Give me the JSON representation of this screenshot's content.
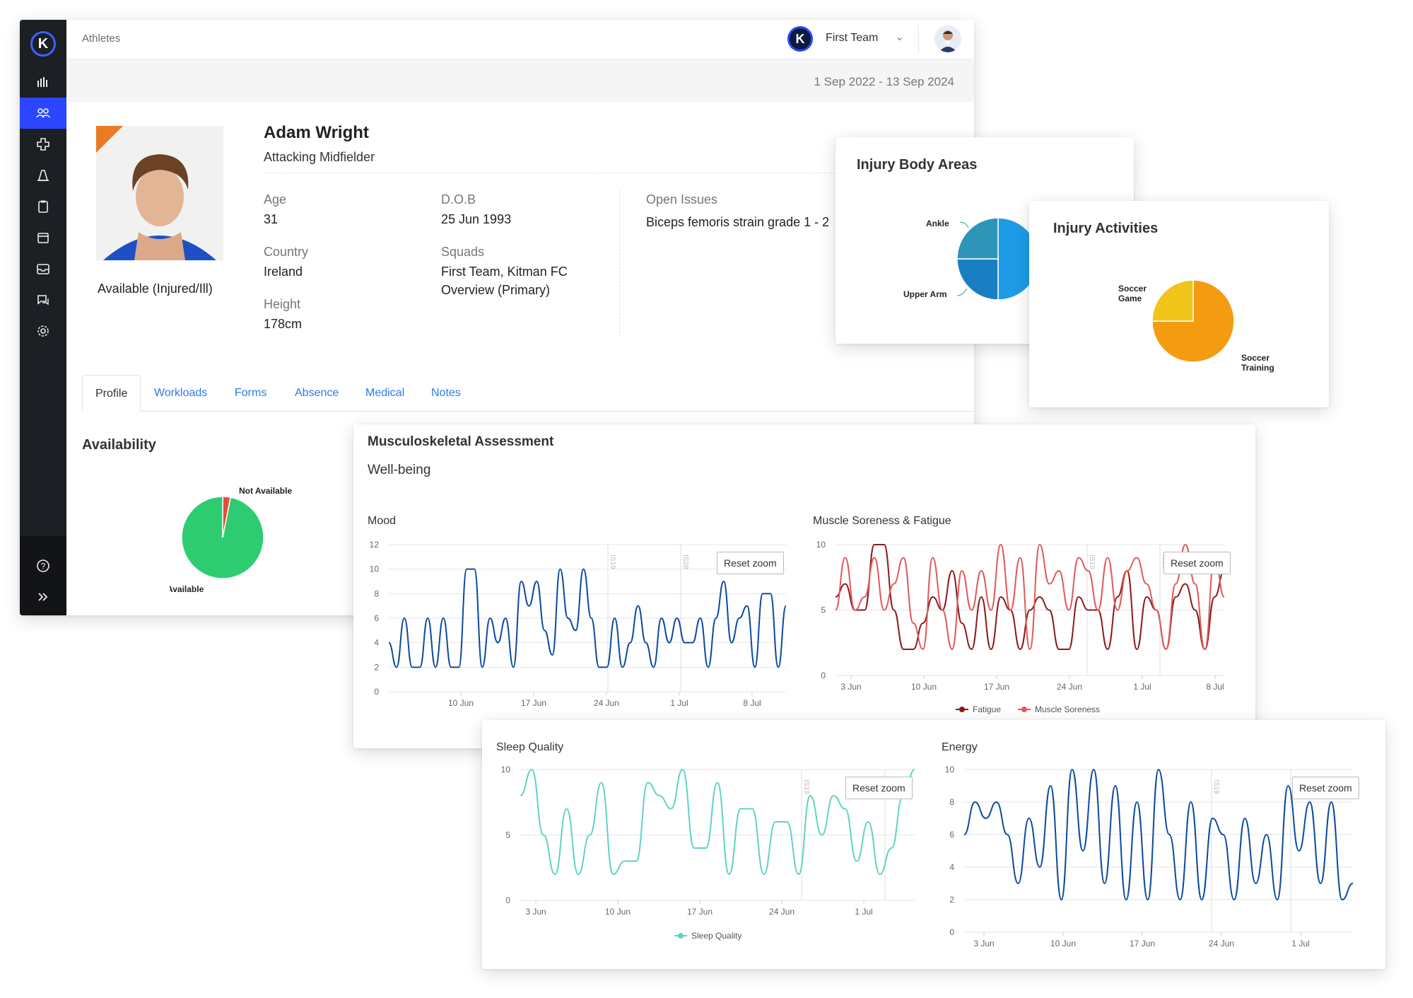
{
  "breadcrumb": "Athletes",
  "team": {
    "name": "First Team",
    "logo_letter": "K"
  },
  "date_range": "1 Sep 2022 - 13 Sep 2024",
  "sidebar": {
    "logo_letter": "K",
    "items": [
      {
        "icon": "bar-chart-icon"
      },
      {
        "icon": "athletes-icon",
        "active": true
      },
      {
        "icon": "medical-cross-icon"
      },
      {
        "icon": "cone-icon"
      },
      {
        "icon": "clipboard-icon"
      },
      {
        "icon": "calendar-icon"
      },
      {
        "icon": "inbox-icon"
      },
      {
        "icon": "chat-icon"
      },
      {
        "icon": "settings-icon"
      }
    ],
    "bottom_items": [
      {
        "icon": "help-icon"
      },
      {
        "icon": "expand-icon"
      }
    ]
  },
  "athlete": {
    "name": "Adam Wright",
    "position": "Attacking Midfielder",
    "status": "Available (Injured/Ill)",
    "status_flag_color": "#ea7b26",
    "fields": {
      "age_label": "Age",
      "age": "31",
      "dob_label": "D.O.B",
      "dob": "25 Jun 1993",
      "country_label": "Country",
      "country": "Ireland",
      "squads_label": "Squads",
      "squads_line1": "First Team, Kitman FC",
      "squads_line2": "Overview (Primary)",
      "height_label": "Height",
      "height": "178cm",
      "issues_label": "Open Issues",
      "issues": "Biceps femoris strain grade 1 - 2"
    }
  },
  "tabs": [
    "Profile",
    "Workloads",
    "Forms",
    "Absence",
    "Medical",
    "Notes"
  ],
  "availability": {
    "title": "Availability",
    "chart_data": {
      "type": "pie",
      "slices": [
        {
          "label": "Available",
          "value": 97,
          "color": "#2ecc71"
        },
        {
          "label": "Not Available",
          "value": 3,
          "color": "#e74c3c"
        }
      ]
    }
  },
  "injury_body_areas": {
    "title": "Injury Body Areas",
    "chart_data": {
      "type": "pie",
      "slices": [
        {
          "label": "Ankle",
          "value": 25,
          "color": "#2e95b8"
        },
        {
          "label": "Upper Arm",
          "value": 25,
          "color": "#1a7fc2"
        },
        {
          "label": "",
          "value": 50,
          "color": "#1e9be6"
        }
      ]
    }
  },
  "injury_activities": {
    "title": "Injury Activities",
    "chart_data": {
      "type": "pie",
      "slices": [
        {
          "label": "Soccer Game",
          "value": 25,
          "color": "#f0c419"
        },
        {
          "label": "Soccer Training",
          "value": 75,
          "color": "#f39c12"
        }
      ]
    }
  },
  "msk": {
    "title": "Musculoskeletal Assessment",
    "subtitle": "Well-being"
  },
  "reset_zoom": "Reset zoom",
  "charts": {
    "mood": {
      "title": "Mood",
      "chart_data": {
        "type": "line",
        "ylim": [
          0,
          12
        ],
        "yticks": [
          0,
          2,
          4,
          6,
          8,
          10,
          12
        ],
        "xticks": [
          "10 Jun",
          "17 Jun",
          "24 Jun",
          "1 Jul",
          "8 Jul"
        ],
        "markers": [
          "IS19",
          "IS28"
        ],
        "series": [
          {
            "color": "#0d4a9e",
            "values": [
              4,
              2,
              6,
              2,
              2,
              6,
              2,
              6,
              2,
              2,
              10,
              10,
              2,
              6,
              4,
              6,
              2,
              9,
              7,
              9,
              5,
              3,
              10,
              6,
              5,
              10,
              6,
              2,
              2,
              6,
              2,
              4,
              7,
              4,
              2,
              6,
              4,
              6,
              4,
              4,
              6,
              2,
              6,
              9,
              4,
              6,
              7,
              2,
              8,
              8,
              2,
              7
            ]
          }
        ]
      }
    },
    "soreness": {
      "title": "Muscle Soreness & Fatigue",
      "chart_data": {
        "type": "line",
        "ylim": [
          0,
          10
        ],
        "yticks": [
          0,
          5,
          10
        ],
        "xticks": [
          "3 Jun",
          "10 Jun",
          "17 Jun",
          "24 Jun",
          "1 Jul",
          "8 Jul"
        ],
        "markers": [
          "IS19",
          "IS28"
        ],
        "series": [
          {
            "name": "Fatigue",
            "color": "#8b1a1a",
            "values": [
              6,
              7,
              5,
              5,
              10,
              10,
              5,
              2,
              2,
              4,
              6,
              5,
              8,
              4,
              2,
              6,
              2,
              6,
              5,
              2,
              5,
              6,
              5,
              2,
              2,
              6,
              5,
              5,
              2,
              6,
              8,
              2,
              6,
              5,
              2,
              6,
              7,
              5,
              2,
              6,
              8
            ]
          },
          {
            "name": "Muscle Soreness",
            "color": "#e05a5a",
            "values": [
              5,
              9,
              5,
              6,
              9,
              5,
              7,
              9,
              4,
              2,
              9,
              5,
              2,
              8,
              5,
              8,
              5,
              10,
              5,
              9,
              2,
              10,
              7,
              8,
              5,
              9,
              8,
              5,
              9,
              5,
              8,
              9,
              7,
              5,
              2,
              7,
              10,
              7,
              2,
              9,
              6
            ]
          }
        ]
      }
    },
    "sleep": {
      "title": "Sleep Quality",
      "chart_data": {
        "type": "line",
        "ylim": [
          0,
          10
        ],
        "yticks": [
          0,
          5,
          10
        ],
        "xticks": [
          "3 Jun",
          "10 Jun",
          "17 Jun",
          "24 Jun",
          "1 Jul"
        ],
        "markers": [
          "IS19",
          "IS28"
        ],
        "series": [
          {
            "name": "Sleep Quality",
            "color": "#5fd3c4",
            "values": [
              8,
              10,
              5,
              2,
              7,
              2,
              5,
              9,
              2,
              3,
              3,
              9,
              8,
              7,
              10,
              4,
              4,
              9,
              2,
              7,
              7,
              2,
              6,
              6,
              2,
              8,
              5,
              8,
              7,
              3,
              6,
              2,
              4,
              8,
              10
            ]
          }
        ]
      }
    },
    "energy": {
      "title": "Energy",
      "chart_data": {
        "type": "line",
        "ylim": [
          0,
          10
        ],
        "yticks": [
          0,
          2,
          4,
          6,
          8,
          10
        ],
        "xticks": [
          "3 Jun",
          "10 Jun",
          "17 Jun",
          "24 Jun",
          "1 Jul"
        ],
        "markers": [
          "IS19",
          "IS28"
        ],
        "series": [
          {
            "color": "#0d4a9e",
            "values": [
              6,
              8,
              7,
              8,
              6,
              3,
              7,
              4,
              9,
              2,
              10,
              5,
              10,
              3,
              9,
              2,
              8,
              2,
              10,
              6,
              2,
              8,
              2,
              7,
              6,
              2,
              7,
              3,
              6,
              2,
              9,
              5,
              8,
              3,
              8,
              2,
              3
            ]
          }
        ]
      }
    }
  }
}
